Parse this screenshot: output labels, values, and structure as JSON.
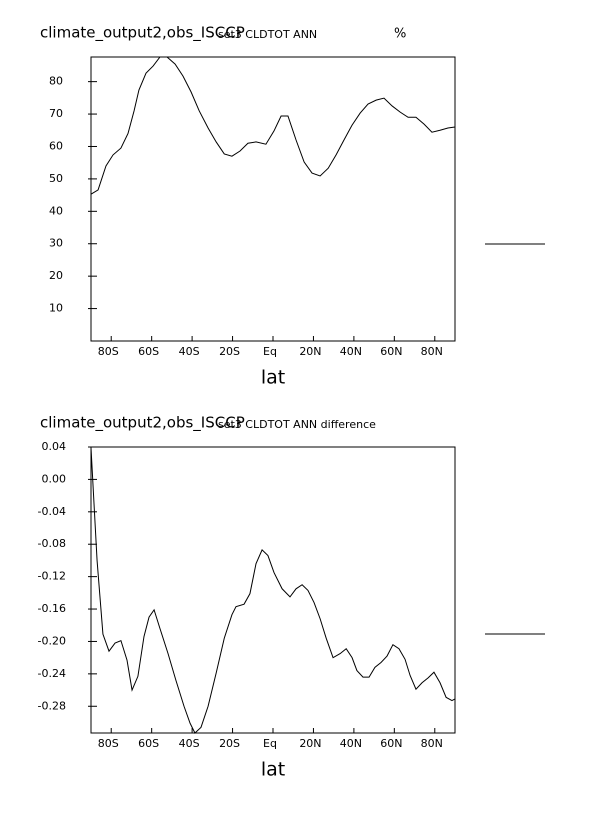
{
  "chart_data": [
    {
      "type": "line",
      "title": "climate_output2,obs_ISCCP",
      "subtitle": "set3 CLDTOT ANN",
      "units": "%",
      "xlabel": "lat",
      "color": "#000000",
      "x": [
        -90,
        -86.5,
        -82.6,
        -79.1,
        -75.2,
        -71.7,
        -68.7,
        -66.3,
        -62.8,
        -59.3,
        -55.9,
        -52.4,
        -48.4,
        -44.5,
        -40.5,
        -36.5,
        -32.1,
        -28.1,
        -24.1,
        -20.3,
        -16.3,
        -12.4,
        -8.4,
        -3.5,
        0.5,
        4,
        7.4,
        11.4,
        15.4,
        19.3,
        23.3,
        27.3,
        31.2,
        35.1,
        39.1,
        43.1,
        47,
        51,
        54.9,
        58.9,
        62.9,
        66.8,
        70.7,
        74.7,
        78.6,
        82.6,
        86.5,
        90
      ],
      "values": [
        45.3,
        46.6,
        54,
        57.4,
        59.5,
        64,
        71,
        77.4,
        82.6,
        84.8,
        87.6,
        87.6,
        85.4,
        81.7,
        76.8,
        71,
        65.7,
        61.4,
        57.7,
        57,
        58.6,
        61,
        61.4,
        60.7,
        64.8,
        69.4,
        69.4,
        62,
        55.2,
        51.8,
        50.9,
        53.3,
        57.4,
        62,
        66.6,
        70.3,
        73.1,
        74.3,
        74.9,
        72.5,
        70.6,
        69,
        69,
        66.9,
        64.4,
        65,
        65.7,
        66
      ],
      "xlim": [
        -90,
        90
      ],
      "xticks": [
        {
          "value": -80,
          "label": "80S"
        },
        {
          "value": -60,
          "label": "60S"
        },
        {
          "value": -40,
          "label": "40S"
        },
        {
          "value": -20,
          "label": "20S"
        },
        {
          "value": 0,
          "label": "Eq"
        },
        {
          "value": 20,
          "label": "20N"
        },
        {
          "value": 40,
          "label": "40N"
        },
        {
          "value": 60,
          "label": "60N"
        },
        {
          "value": 80,
          "label": "80N"
        }
      ],
      "ylim": [
        0,
        87.6
      ],
      "yticks": [
        10,
        20,
        30,
        40,
        50,
        60,
        70,
        80
      ]
    },
    {
      "type": "line",
      "title": "climate_output2,obs_ISCCP",
      "subtitle": "set3 CLDTOT ANN difference",
      "xlabel": "lat",
      "color": "#000000",
      "x": [
        -90,
        -87,
        -84.1,
        -81.1,
        -78.1,
        -75.2,
        -72.2,
        -69.7,
        -66.8,
        -63.8,
        -61.3,
        -58.8,
        -55.9,
        -51.9,
        -48,
        -44,
        -41,
        -38.6,
        -35.6,
        -32.1,
        -28.1,
        -24.1,
        -20.3,
        -18.3,
        -14.3,
        -11.4,
        -8.4,
        -5.4,
        -2.5,
        0.5,
        4.5,
        8.4,
        11.4,
        14.4,
        17.3,
        20.3,
        23.3,
        26.3,
        29.7,
        33.2,
        36.2,
        39.1,
        41.5,
        44.5,
        47.5,
        50.4,
        53.4,
        56.4,
        59.3,
        62.3,
        65.3,
        67.8,
        70.7,
        73.7,
        76.7,
        79.6,
        82.6,
        85.6,
        88.5,
        90
      ],
      "values": [
        0.039,
        -0.1,
        -0.191,
        -0.212,
        -0.202,
        -0.199,
        -0.223,
        -0.26,
        -0.243,
        -0.194,
        -0.17,
        -0.161,
        -0.184,
        -0.215,
        -0.248,
        -0.28,
        -0.301,
        -0.313,
        -0.306,
        -0.28,
        -0.239,
        -0.196,
        -0.167,
        -0.157,
        -0.154,
        -0.141,
        -0.104,
        -0.087,
        -0.094,
        -0.115,
        -0.135,
        -0.145,
        -0.135,
        -0.13,
        -0.137,
        -0.152,
        -0.172,
        -0.196,
        -0.22,
        -0.215,
        -0.209,
        -0.22,
        -0.236,
        -0.244,
        -0.244,
        -0.232,
        -0.226,
        -0.218,
        -0.204,
        -0.209,
        -0.222,
        -0.242,
        -0.259,
        -0.251,
        -0.245,
        -0.238,
        -0.251,
        -0.269,
        -0.273,
        -0.271
      ],
      "xlim": [
        -90,
        90
      ],
      "xticks": [
        {
          "value": -80,
          "label": "80S"
        },
        {
          "value": -60,
          "label": "60S"
        },
        {
          "value": -40,
          "label": "40S"
        },
        {
          "value": -20,
          "label": "20S"
        },
        {
          "value": 0,
          "label": "Eq"
        },
        {
          "value": 20,
          "label": "20N"
        },
        {
          "value": 40,
          "label": "40N"
        },
        {
          "value": 60,
          "label": "60N"
        },
        {
          "value": 80,
          "label": "80N"
        }
      ],
      "ylim": [
        -0.313,
        0.04
      ],
      "yticks": [
        0.04,
        {
          "value": 0,
          "label": "0.00"
        },
        -0.04,
        -0.08,
        -0.12,
        -0.16,
        {
          "value": -0.2,
          "label": "-0.20"
        },
        -0.24,
        -0.28
      ]
    }
  ]
}
